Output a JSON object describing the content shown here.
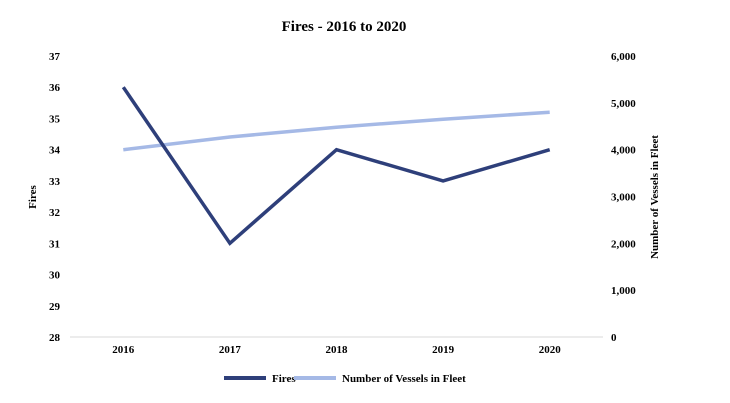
{
  "chart_data": {
    "type": "line",
    "title": "Fires - 2016 to 2020",
    "categories": [
      "2016",
      "2017",
      "2018",
      "2019",
      "2020"
    ],
    "series": [
      {
        "name": "Fires",
        "axis": "left",
        "color": "#2e3f7a",
        "values": [
          36,
          31,
          34,
          33,
          34
        ]
      },
      {
        "name": "Number of Vessels in Fleet",
        "axis": "right",
        "color": "#a5b9e6",
        "values": [
          4000,
          4270,
          4480,
          4650,
          4800
        ]
      }
    ],
    "y_left": {
      "label": "Fires",
      "range": [
        28,
        37
      ],
      "ticks": [
        "28",
        "29",
        "30",
        "31",
        "32",
        "33",
        "34",
        "35",
        "36",
        "37"
      ]
    },
    "y_right": {
      "label": "Number of Vessels in Fleet",
      "range": [
        0,
        6000
      ],
      "ticks": [
        "0",
        "1,000",
        "2,000",
        "3,000",
        "4,000",
        "5,000",
        "6,000"
      ]
    },
    "grid": false,
    "legend_position": "bottom"
  }
}
